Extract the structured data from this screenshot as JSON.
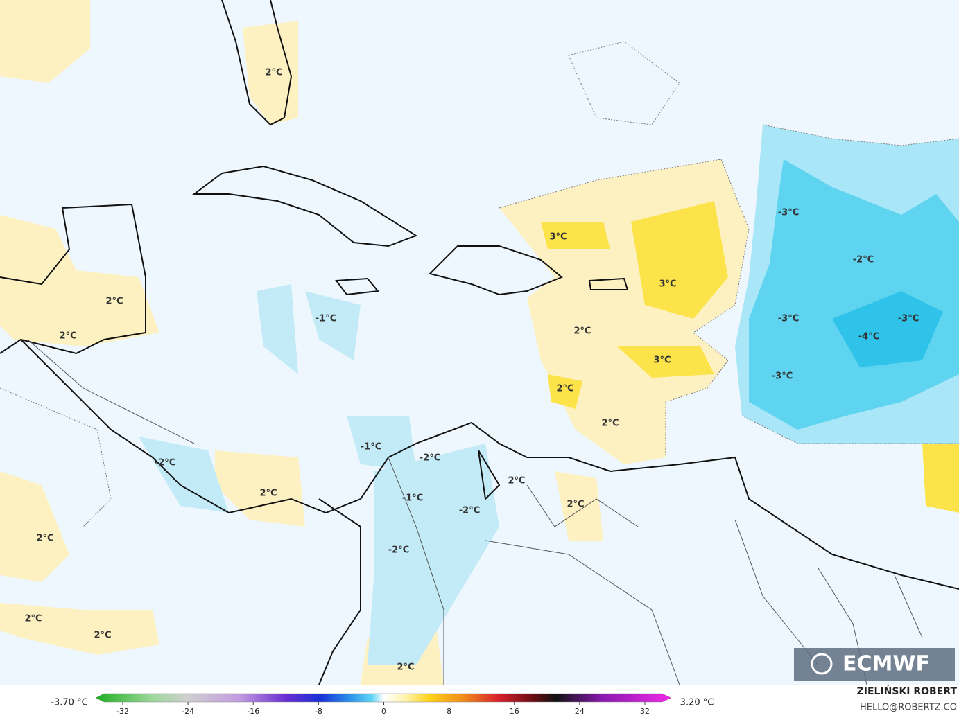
{
  "map": {
    "labels": [
      "2°C",
      "2°C",
      "2°C",
      "3°C",
      "3°C",
      "-3°C",
      "-2°C",
      "-1°C",
      "2°C",
      "-3°C",
      "-3°C",
      "-4°C",
      "3°C",
      "-3°C",
      "2°C",
      "2°C",
      "-1°C",
      "-2°C",
      "-2°C",
      "2°C",
      "2°C",
      "-1°C",
      "-2°C",
      "2°C",
      "2°C",
      "-2°C",
      "2°C",
      "2°C",
      "2°C"
    ]
  },
  "colorbar": {
    "min_label": "-3.70 °C",
    "max_label": "3.20 °C",
    "ticks": [
      -32,
      -24,
      -16,
      -8,
      0,
      8,
      16,
      24,
      32
    ]
  },
  "credit": {
    "author": "ZIELIŃSKI ROBERT",
    "email": "HELLO@ROBERTZ.CO"
  },
  "logo": "ECMWF"
}
